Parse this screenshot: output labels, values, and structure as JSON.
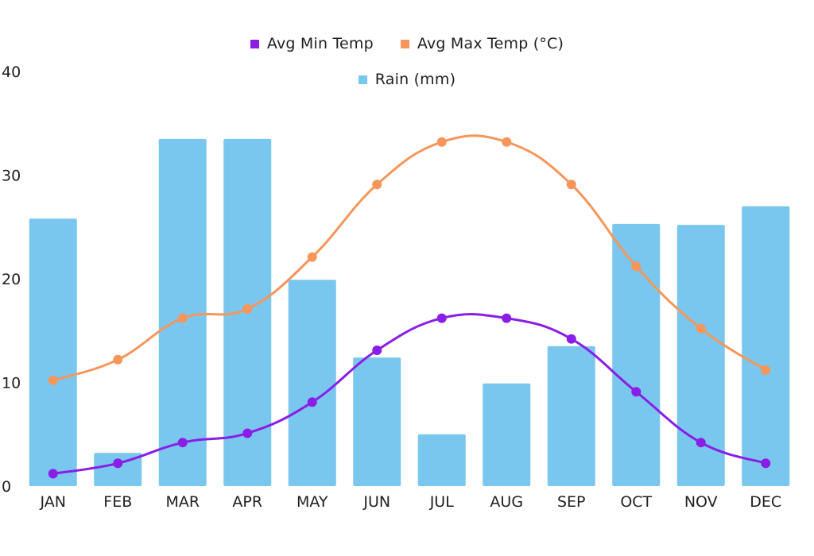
{
  "chart_data": {
    "type": "bar",
    "categories": [
      "JAN",
      "FEB",
      "MAR",
      "APR",
      "MAY",
      "JUN",
      "JUL",
      "AUG",
      "SEP",
      "OCT",
      "NOV",
      "DEC"
    ],
    "ylim": [
      0,
      40
    ],
    "yticks": [
      0,
      10,
      20,
      30,
      40
    ],
    "grid": false,
    "legend_placement": "top-center",
    "series": [
      {
        "name": "Rain (mm)",
        "type": "bar",
        "color": "#79C7EE",
        "values": [
          25.8,
          3.2,
          33.5,
          33.5,
          19.9,
          12.4,
          5.0,
          9.9,
          13.5,
          25.3,
          25.2,
          27.0
        ]
      },
      {
        "name": "Avg Min Temp",
        "type": "line",
        "color": "#8A1EE6",
        "values": [
          1.2,
          2.2,
          4.2,
          5.1,
          8.1,
          13.1,
          16.2,
          16.2,
          14.2,
          9.1,
          4.2,
          2.2
        ]
      },
      {
        "name": "Avg Max Temp (°C)",
        "type": "line",
        "color": "#F7965A",
        "values": [
          10.2,
          12.2,
          16.2,
          17.1,
          22.1,
          29.1,
          33.2,
          33.2,
          29.1,
          21.2,
          15.2,
          11.2
        ]
      }
    ]
  },
  "legend": {
    "min": {
      "label": "Avg Min Temp",
      "color": "#8A1EE6"
    },
    "max": {
      "label": "Avg Max Temp (°C)",
      "color": "#F7965A"
    },
    "rain": {
      "label": "Rain (mm)",
      "color": "#79C7EE"
    }
  }
}
